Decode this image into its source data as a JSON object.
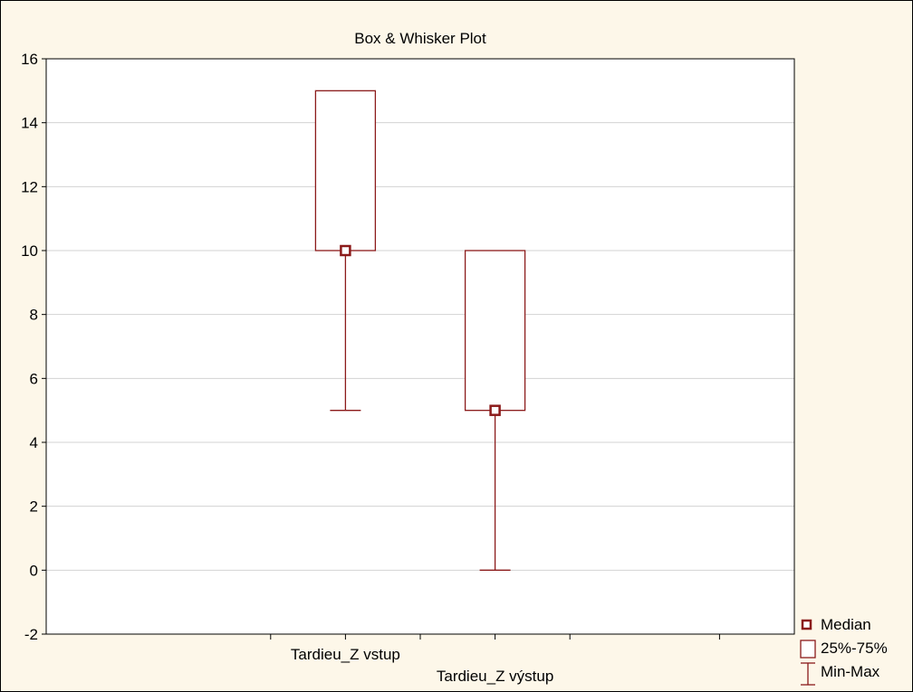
{
  "chart_data": {
    "type": "box",
    "title": "Box & Whisker Plot",
    "xlabel": "",
    "ylabel": "",
    "ylim": [
      -2,
      16
    ],
    "yticks": [
      -2,
      0,
      2,
      4,
      6,
      8,
      10,
      12,
      14,
      16
    ],
    "grid": true,
    "categories": [
      "Tardieu_Z vstup",
      "Tardieu_Z výstup"
    ],
    "boxes": [
      {
        "label": "Tardieu_Z vstup",
        "min": 5,
        "q1": 10,
        "median": 10,
        "q3": 15,
        "max": 15
      },
      {
        "label": "Tardieu_Z výstup",
        "min": 0,
        "q1": 5,
        "median": 5,
        "q3": 10,
        "max": 10
      }
    ],
    "legend": {
      "placement": "bottom-right",
      "items": [
        {
          "symbol": "median-square-icon",
          "label": "Median"
        },
        {
          "symbol": "box-icon",
          "label": "25%-75%"
        },
        {
          "symbol": "whisker-icon",
          "label": "Min-Max"
        }
      ]
    },
    "colors": {
      "series": "#8b1a1a",
      "background": "#fdf7e9",
      "plot_area": "#ffffff",
      "grid": "#d3d3d3"
    }
  }
}
